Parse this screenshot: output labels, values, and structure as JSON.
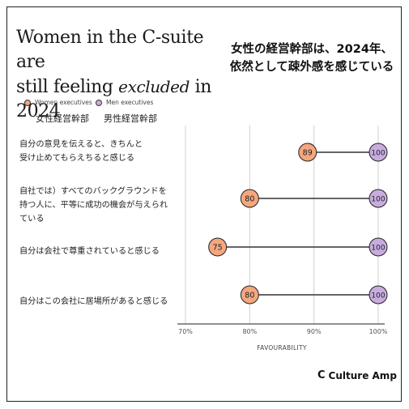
{
  "title": {
    "line1": "Women in the C-suite are",
    "line2_pre": "still feeling ",
    "line2_italic": "excluded",
    "line2_post": " in 2024"
  },
  "title_jp": {
    "line1": "女性の経営幹部は、2024年、",
    "line2": "依然として疎外感を感じている"
  },
  "legend": {
    "women": "Women executives",
    "men": "Men executives",
    "women_jp": "女性経営幹部",
    "men_jp": "男性経営幹部"
  },
  "brand": "Culture Amp",
  "colors": {
    "women": "#f4a77f",
    "men": "#c8acdf",
    "connector": "#333333",
    "grid": "#d0d0d0"
  },
  "chart_data": {
    "type": "dumbbell",
    "xlabel": "FAVOURABILITY",
    "xlim": [
      70,
      100
    ],
    "ticks": [
      "70%",
      "80%",
      "90%",
      "100%"
    ],
    "tick_values": [
      70,
      80,
      90,
      100
    ],
    "grid": true,
    "categories": [
      [
        "自分の意見を伝えると、きちんと",
        "受け止めてもらえちると感じる"
      ],
      [
        "自社では）すべてのバックグラウンドを",
        "持つ人に、平等に成功の機会が与えられ",
        "ている"
      ],
      [
        "自分は会社で尊重されていると感じる"
      ],
      [
        "自分はこの会社に居場所があると感じる"
      ]
    ],
    "series": [
      {
        "name": "Women executives",
        "values": [
          89,
          80,
          75,
          80
        ]
      },
      {
        "name": "Men executives",
        "values": [
          100,
          100,
          100,
          100
        ]
      }
    ]
  }
}
